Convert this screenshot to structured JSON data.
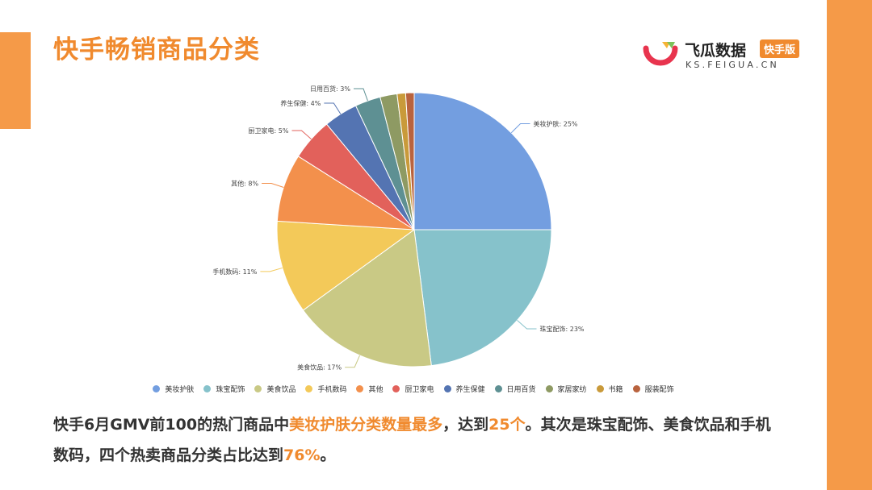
{
  "page": {
    "title": "快手畅销商品分类"
  },
  "brand": {
    "name": "飞瓜数据",
    "badge": "快手版",
    "domain": "KS.FEIGUA.CN"
  },
  "chart_data": {
    "type": "pie",
    "categories": [
      "美妆护肤",
      "珠宝配饰",
      "美食饮品",
      "手机数码",
      "其他",
      "厨卫家电",
      "养生保健",
      "日用百货",
      "家居家纺",
      "书籍",
      "服装配饰"
    ],
    "values": [
      25,
      23,
      17,
      11,
      8,
      5,
      4,
      3,
      2,
      1,
      1
    ],
    "labels": [
      "美妆护肤: 25%",
      "珠宝配饰: 23%",
      "美食饮品: 17%",
      "手机数码: 11%",
      "其他: 8%",
      "厨卫家电: 5%",
      "养生保健: 4%",
      "日用百货: 3%",
      "",
      "",
      ""
    ],
    "colors": [
      "#739EE0",
      "#86C2CB",
      "#C9C985",
      "#F3C959",
      "#F3904C",
      "#E2615B",
      "#5474B2",
      "#5E9093",
      "#8E9A63",
      "#C99A3A",
      "#B9633E"
    ],
    "legend": [
      "美妆护肤",
      "珠宝配饰",
      "美食饮品",
      "手机数码",
      "其他",
      "厨卫家电",
      "养生保健",
      "日用百货",
      "家居家纺",
      "书籍",
      "服装配饰"
    ],
    "legend_position": "bottom"
  },
  "summary": {
    "part1": "快手6月GMV前100的热门商品中",
    "part2": "美妆护肤分类数量最多",
    "part3": "，达到",
    "part4": "25个",
    "part5": "。其次是珠宝配饰、美食饮品和手机数码，四个热卖商品分类占比达到",
    "part6": "76%",
    "part7": "。"
  }
}
